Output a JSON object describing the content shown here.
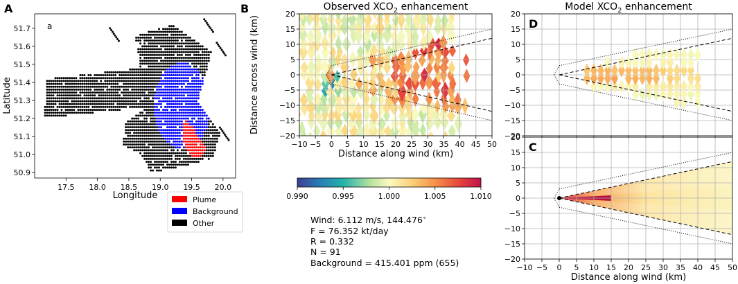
{
  "chart_data": [
    {
      "panel": "A",
      "type": "scatter",
      "title": "",
      "inset_label": "a",
      "xlabel": "Longitude",
      "ylabel": "Latitude",
      "xlim": [
        17.0,
        20.2
      ],
      "ylim": [
        50.87,
        51.78
      ],
      "xticks": [
        17.5,
        18.0,
        18.5,
        19.0,
        19.5,
        20.0
      ],
      "yticks": [
        50.9,
        51.0,
        51.1,
        51.2,
        51.3,
        51.4,
        51.5,
        51.6,
        51.7
      ],
      "legend": [
        {
          "label": "Plume",
          "color": "#ff0000"
        },
        {
          "label": "Background",
          "color": "#0000ff"
        },
        {
          "label": "Other",
          "color": "#000000"
        }
      ],
      "legend_position": "below-right",
      "regions": {
        "other_swath_main": {
          "lon": [
            18.6,
            20.0
          ],
          "lat": [
            50.93,
            51.68
          ]
        },
        "other_swath_west": {
          "lon": [
            17.15,
            18.7
          ],
          "lat": [
            51.18,
            51.5
          ]
        },
        "background_disk": {
          "lon": [
            18.85,
            19.85
          ],
          "lat": [
            51.0,
            51.5
          ]
        },
        "plume_tongue": {
          "lon": [
            19.32,
            19.72
          ],
          "lat": [
            50.98,
            51.2
          ]
        }
      }
    },
    {
      "panel": "B",
      "type": "heatmap",
      "title": "Observed XCO2 enhancement",
      "title_main": "Observed XCO",
      "title_sub": "2",
      "title_tail": " enhancement",
      "xlabel": "Distance along wind (km)",
      "ylabel": "Distance across wind (km)",
      "xlim": [
        -10,
        50
      ],
      "ylim": [
        -20,
        20
      ],
      "xticks": [
        -10,
        -5,
        0,
        5,
        10,
        15,
        20,
        25,
        30,
        35,
        40,
        45,
        50
      ],
      "yticks": [
        -20,
        -15,
        -10,
        -5,
        0,
        5,
        10,
        15,
        20
      ],
      "cone_dashed_slope": 0.24,
      "cone_dotted_offset": 3,
      "cone_dotted_slope": 0.24,
      "colorbar": {
        "min": 0.99,
        "max": 1.01,
        "ticks": [
          "0.990",
          "0.995",
          "1.000",
          "1.005",
          "1.010"
        ]
      },
      "annotations": [
        "Wind: 6.112 m/s, 144.476$^\\circ$",
        "F = 76.352 kt/day",
        "R = 0.332",
        "N = 91",
        "Background = 415.401 ppm (655)"
      ]
    },
    {
      "panel": "D",
      "type": "heatmap",
      "title": "Model XCO2 enhancement",
      "title_main": "Model XCO",
      "title_sub": "2",
      "title_tail": " enhancement",
      "xlim": [
        -10,
        50
      ],
      "ylim": [
        -20,
        20
      ],
      "xticks": [
        -10,
        -5,
        0,
        5,
        10,
        15,
        20,
        25,
        30,
        35,
        40,
        45,
        50
      ],
      "yticks": [
        -20,
        -15,
        -10,
        -5,
        0,
        5,
        10,
        15,
        20
      ],
      "plume_extent_x": [
        8,
        40
      ]
    },
    {
      "panel": "C",
      "type": "heatmap",
      "title": "",
      "xlabel": "Distance along wind (km)",
      "xlim": [
        -10,
        50
      ],
      "ylim": [
        -20,
        20
      ],
      "xticks": [
        -10,
        -5,
        0,
        5,
        10,
        15,
        20,
        25,
        30,
        35,
        40,
        45,
        50
      ],
      "yticks": [
        -20,
        -15,
        -10,
        -5,
        0,
        5,
        10,
        15,
        20
      ],
      "source_location": [
        0,
        0
      ]
    }
  ],
  "panel_labels": {
    "a": "A",
    "b": "B",
    "c": "C",
    "d": "D"
  },
  "colors": {
    "plume": "#ff0000",
    "background": "#0000ff",
    "other": "#000000",
    "grid": "#b0b0b0"
  }
}
